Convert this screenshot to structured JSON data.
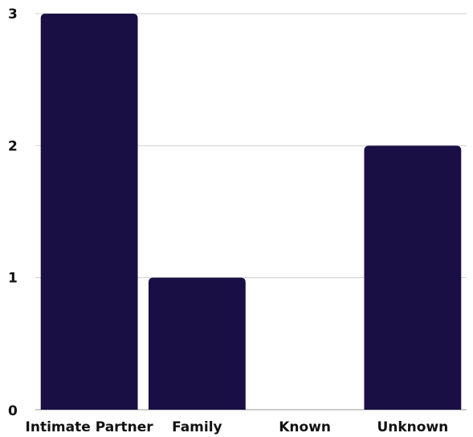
{
  "chart_data": {
    "type": "bar",
    "title": "",
    "xlabel": "",
    "ylabel": "",
    "categories": [
      "Intimate Partner",
      "Family",
      "Known",
      "Unknown"
    ],
    "values": [
      3,
      1,
      0,
      2
    ],
    "ylim": [
      0,
      3
    ],
    "yticks": [
      "0",
      "1",
      "2",
      "3"
    ],
    "grid": true,
    "bar_color": "#1a0f45"
  }
}
